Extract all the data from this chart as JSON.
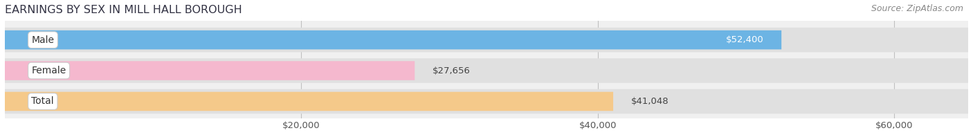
{
  "title": "EARNINGS BY SEX IN MILL HALL BOROUGH",
  "source": "Source: ZipAtlas.com",
  "categories": [
    "Male",
    "Female",
    "Total"
  ],
  "values": [
    52400,
    27656,
    41048
  ],
  "bar_colors": [
    "#6cb4e4",
    "#f5b8ce",
    "#f5c98a"
  ],
  "bar_labels": [
    "$52,400",
    "$27,656",
    "$41,048"
  ],
  "label_inside": [
    true,
    false,
    false
  ],
  "label_text_colors": [
    "#ffffff",
    "#555555",
    "#555555"
  ],
  "xlim": [
    0,
    65000
  ],
  "xticks": [
    20000,
    40000,
    60000
  ],
  "xtick_labels": [
    "$20,000",
    "$40,000",
    "$60,000"
  ],
  "background_color": "#f0f0f0",
  "bar_bg_color": "#e0e0e0",
  "title_fontsize": 11.5,
  "source_fontsize": 9,
  "tick_fontsize": 9.5,
  "bar_label_fontsize": 9.5,
  "category_fontsize": 10,
  "bar_height": 0.62,
  "bg_bar_extra": 0.18
}
